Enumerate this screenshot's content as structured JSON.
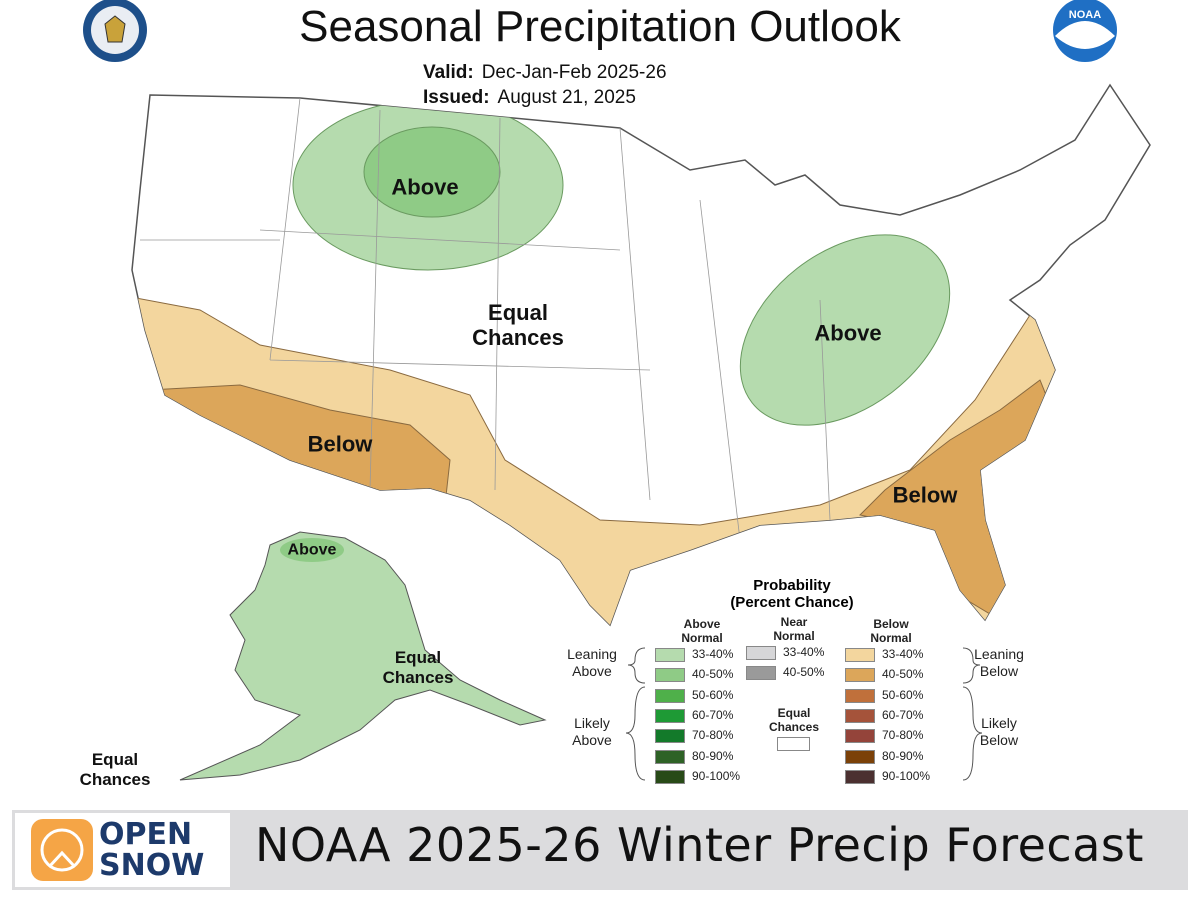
{
  "header": {
    "title": "Seasonal Precipitation Outlook",
    "valid_label": "Valid:",
    "valid_value": "Dec-Jan-Feb 2025-26",
    "issued_label": "Issued:",
    "issued_value": "August 21, 2025",
    "left_seal_icon": "department-of-commerce-seal",
    "right_logo_icon": "noaa-logo",
    "noaa_logo_text": "NOAA"
  },
  "map": {
    "labels": {
      "nw_above": "Above",
      "equal_chances_center": "Equal\nChances",
      "ohio_above": "Above",
      "sw_below": "Below",
      "se_below": "Below",
      "alaska_above": "Above",
      "alaska_equal_chances": "Equal\nChances",
      "aleutian_equal_chances": "Equal\nChances"
    },
    "colors": {
      "above_33_40": "#b5dbae",
      "above_40_50": "#8fcb86",
      "below_33_40": "#f3d69e",
      "below_40_50": "#dca65a",
      "land": "#ffffff",
      "border": "#888888"
    }
  },
  "legend": {
    "title": "Probability",
    "subtitle": "(Percent Chance)",
    "above_header": "Above\nNormal",
    "near_header": "Near\nNormal",
    "below_header": "Below\nNormal",
    "leaning_above": "Leaning\nAbove",
    "likely_above": "Likely\nAbove",
    "leaning_below": "Leaning\nBelow",
    "likely_below": "Likely\nBelow",
    "equal_chances": "Equal\nChances",
    "above": [
      {
        "range": "33-40%",
        "color": "#b5dbae"
      },
      {
        "range": "40-50%",
        "color": "#8fcb86"
      },
      {
        "range": "50-60%",
        "color": "#4fb04a"
      },
      {
        "range": "60-70%",
        "color": "#1e9a35"
      },
      {
        "range": "70-80%",
        "color": "#137a2a"
      },
      {
        "range": "80-90%",
        "color": "#2e6226"
      },
      {
        "range": "90-100%",
        "color": "#284a17"
      }
    ],
    "near": [
      {
        "range": "33-40%",
        "color": "#d6d6d8"
      },
      {
        "range": "40-50%",
        "color": "#9a9a9a"
      }
    ],
    "below": [
      {
        "range": "33-40%",
        "color": "#f3d69e"
      },
      {
        "range": "40-50%",
        "color": "#dca65a"
      },
      {
        "range": "50-60%",
        "color": "#c0703b"
      },
      {
        "range": "60-70%",
        "color": "#a5533a"
      },
      {
        "range": "70-80%",
        "color": "#94443a"
      },
      {
        "range": "80-90%",
        "color": "#7b4108"
      },
      {
        "range": "90-100%",
        "color": "#4b3030"
      }
    ]
  },
  "banner": {
    "logo_line1": "OPEN",
    "logo_line2": "SNOW",
    "logo_icon": "opensnow-logo",
    "text": "NOAA 2025-26 Winter Precip Forecast"
  }
}
